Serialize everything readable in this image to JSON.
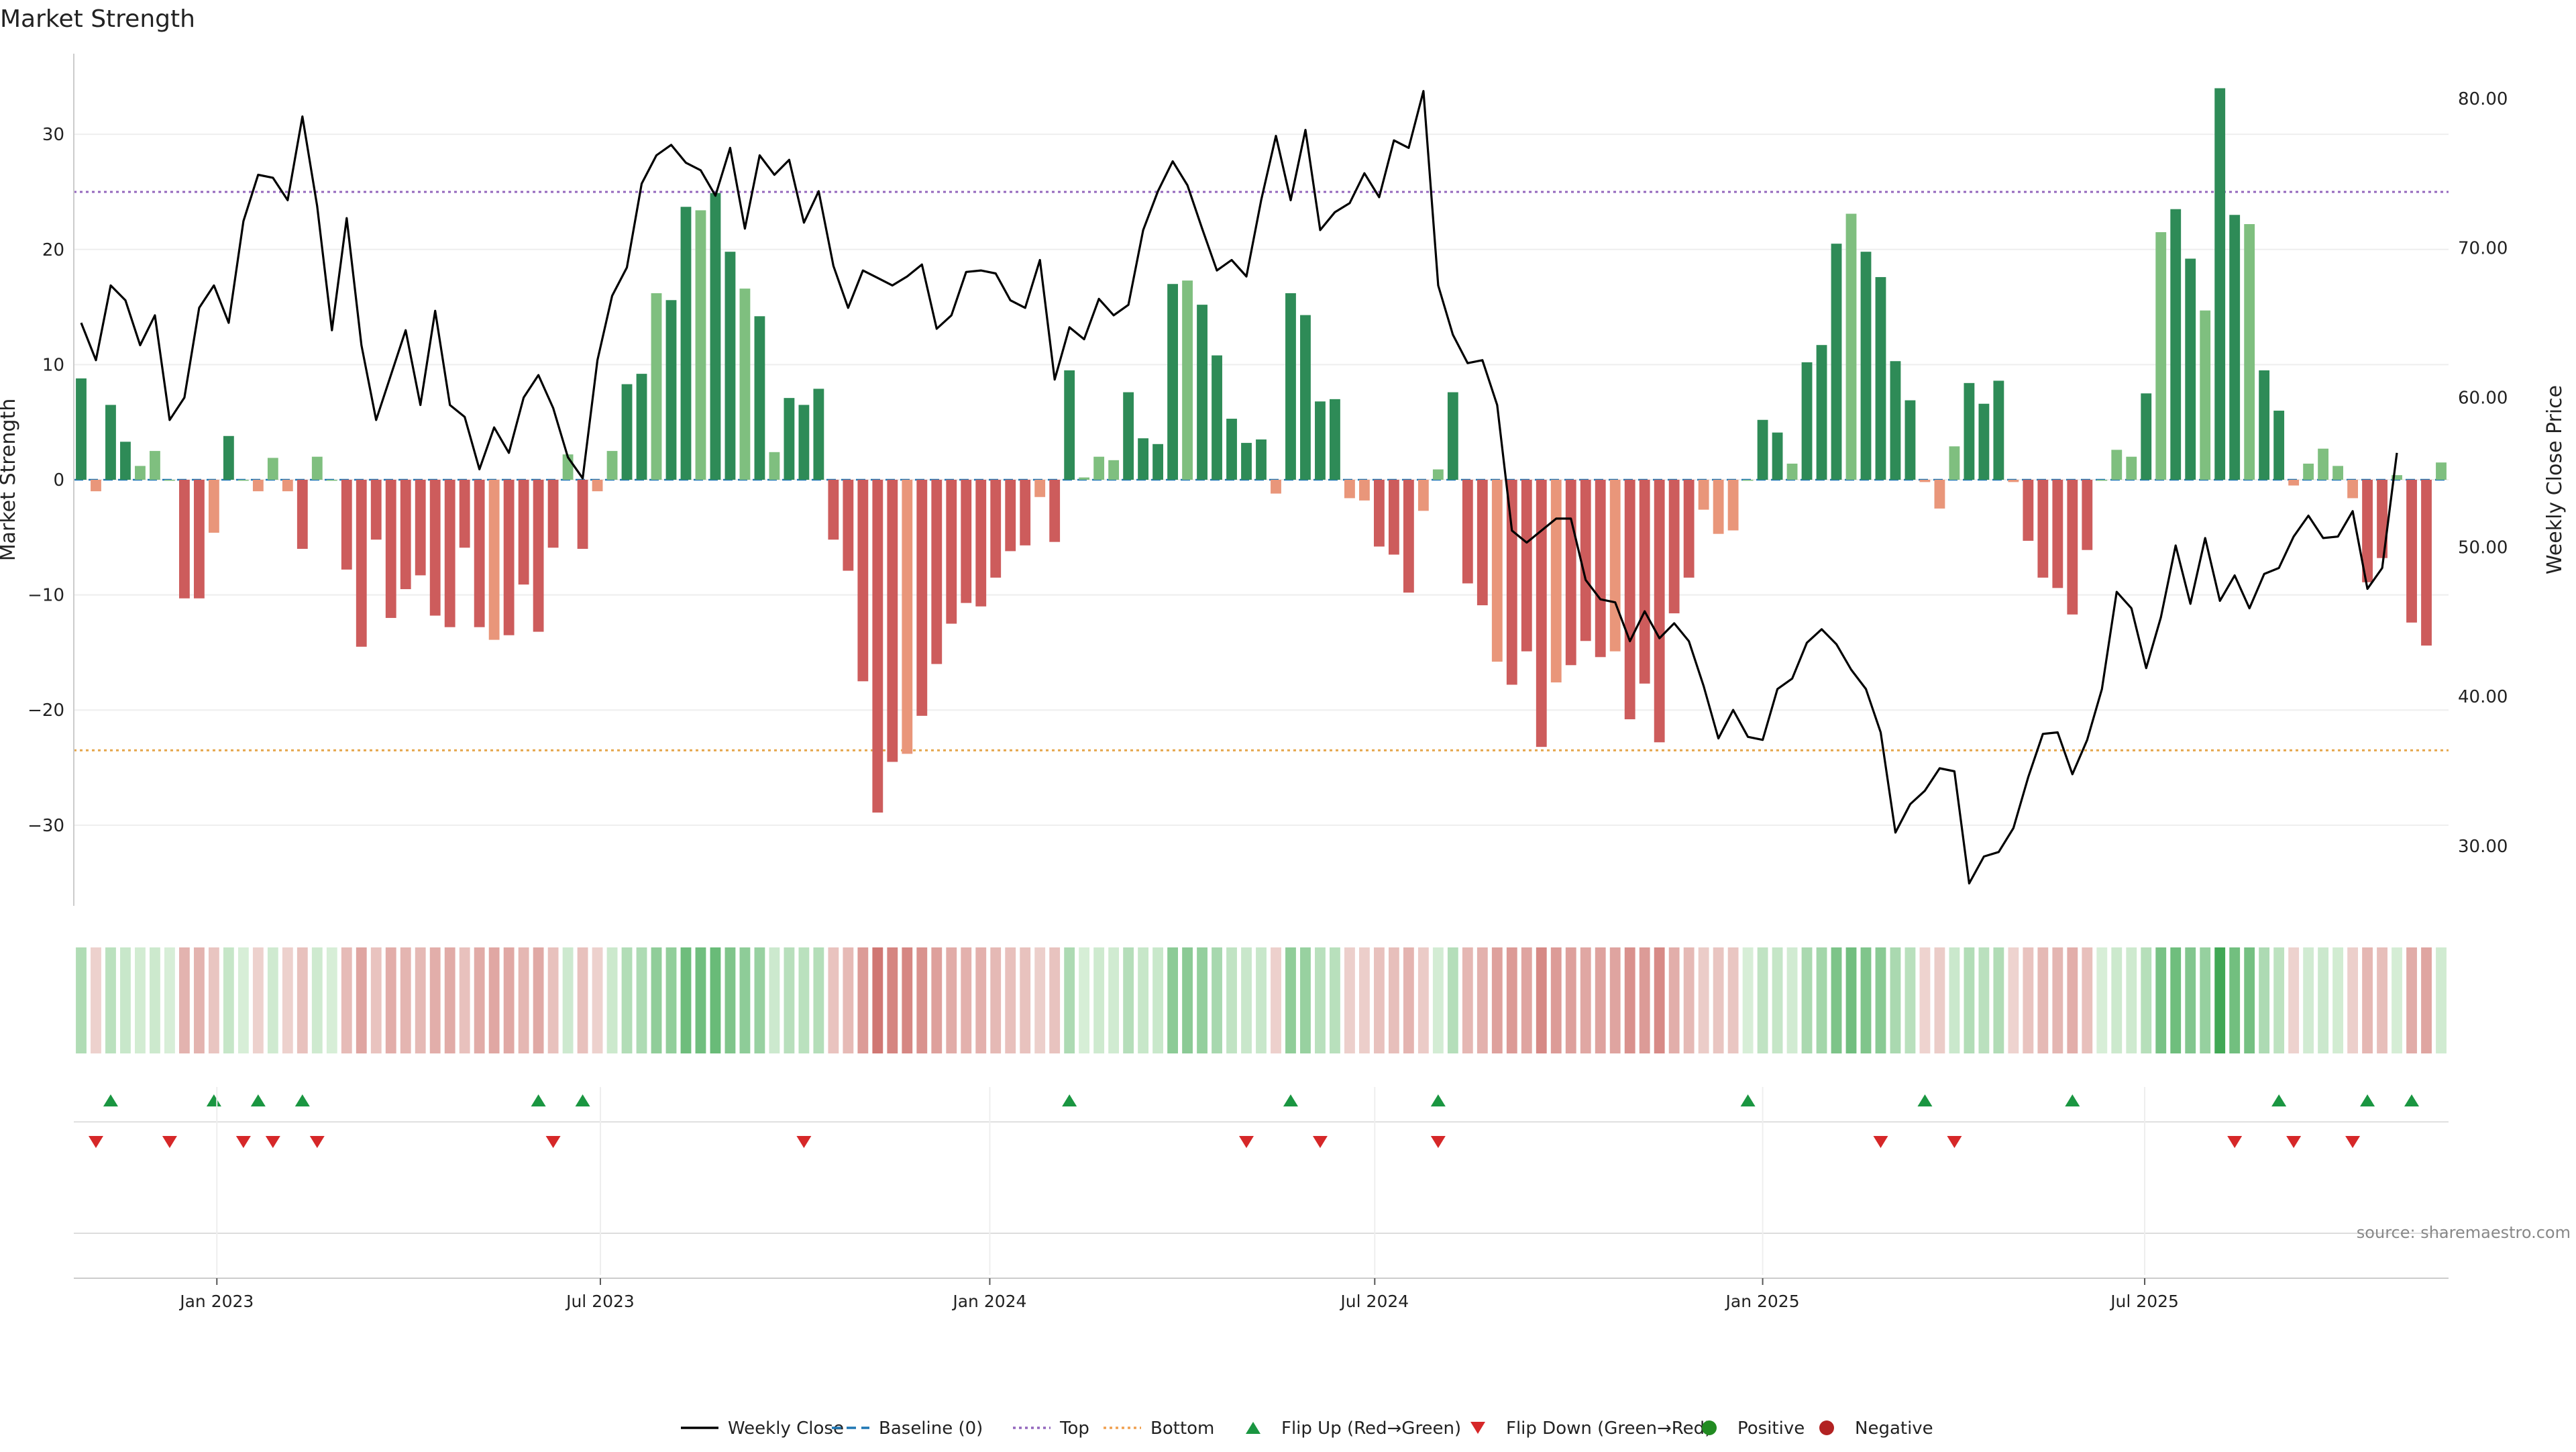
{
  "chart_data": {
    "type": "bar+line",
    "title": "Market Strength",
    "ylabel_left": "Market Strength",
    "ylabel_right": "Weekly Close Price",
    "source_text": "source: sharemaestro.com",
    "ylim_left": [
      -37,
      37
    ],
    "ylim_right": [
      26,
      83
    ],
    "yticks_left": [
      30,
      20,
      10,
      0,
      -10,
      -20,
      -30
    ],
    "yticks_left_labels": [
      "30",
      "20",
      "10",
      "0",
      "−10",
      "−20",
      "−30"
    ],
    "yticks_right": [
      80,
      70,
      60,
      50,
      40,
      30
    ],
    "yticks_right_labels": [
      "80.00",
      "70.00",
      "60.00",
      "50.00",
      "40.00",
      "30.00"
    ],
    "x_tick_labels": [
      "Jan 2023",
      "Jul 2023",
      "Jan 2024",
      "Jul 2024",
      "Jan 2025",
      "Jul 2025"
    ],
    "x_tick_week_index": [
      9.2,
      35.2,
      61.6,
      87.7,
      114.0,
      139.9
    ],
    "top_line": 25,
    "bottom_line": -23.5,
    "strength": [
      8.8,
      -1,
      6.5,
      3.3,
      1.2,
      2.5,
      0,
      -10.3,
      -10.3,
      -4.6,
      3.8,
      0,
      -1,
      1.9,
      -1,
      -6,
      2,
      0,
      -7.8,
      -14.5,
      -5.2,
      -12,
      -9.5,
      -8.3,
      -11.8,
      -12.8,
      -5.9,
      -12.8,
      -13.9,
      -13.5,
      -9.1,
      -13.2,
      -5.9,
      2.2,
      -6,
      -1,
      2.5,
      8.3,
      9.2,
      16.2,
      15.6,
      23.7,
      23.4,
      24.9,
      19.8,
      16.6,
      14.2,
      2.4,
      7.1,
      6.5,
      7.9,
      -5.2,
      -7.9,
      -17.5,
      -28.9,
      -24.5,
      -23.8,
      -20.5,
      -16,
      -12.5,
      -10.7,
      -11,
      -8.5,
      -6.2,
      -5.7,
      -1.5,
      -5.4,
      9.5,
      0.2,
      2,
      1.7,
      7.6,
      3.6,
      3.1,
      17,
      17.3,
      15.2,
      10.8,
      5.3,
      3.2,
      3.5,
      -1.2,
      16.2,
      14.3,
      6.8,
      7,
      -1.6,
      -1.8,
      -5.8,
      -6.5,
      -9.8,
      -2.7,
      0.9,
      7.6,
      -9,
      -10.9,
      -15.8,
      -17.8,
      -14.9,
      -23.2,
      -17.6,
      -16.1,
      -14,
      -15.4,
      -14.9,
      -20.8,
      -17.7,
      -22.8,
      -11.6,
      -8.5,
      -2.6,
      -4.7,
      -4.4,
      0,
      5.2,
      4.1,
      1.4,
      10.2,
      11.7,
      20.5,
      23.1,
      19.8,
      17.6,
      10.3,
      6.9,
      -0.2,
      -2.5,
      2.9,
      8.4,
      6.6,
      8.6,
      -0.2,
      -5.3,
      -8.5,
      -9.4,
      -11.7,
      -6.1,
      0,
      2.6,
      2,
      7.5,
      21.5,
      23.5,
      19.2,
      14.7,
      34,
      23,
      22.2,
      9.5,
      6,
      -0.5,
      1.4,
      2.7,
      1.2,
      -1.6,
      -8.9,
      -6.8,
      0.4,
      -12.4,
      -14.4,
      1.5
    ],
    "weekly_close": [
      65,
      62.5,
      67.5,
      66.5,
      63.5,
      65.5,
      58.5,
      60,
      66,
      67.5,
      65,
      71.8,
      74.9,
      74.7,
      73.2,
      78.8,
      72.8,
      64.5,
      72,
      63.5,
      58.5,
      61.5,
      64.5,
      59.5,
      65.8,
      59.5,
      58.7,
      55.2,
      58,
      56.3,
      60,
      61.5,
      59.3,
      56,
      54.6,
      62.5,
      66.8,
      68.7,
      74.3,
      76.2,
      76.9,
      75.7,
      75.2,
      73.5,
      76.7,
      71.3,
      76.2,
      74.9,
      75.9,
      71.7,
      73.8,
      68.8,
      66,
      68.5,
      68,
      67.5,
      68.1,
      68.9,
      64.6,
      65.5,
      68.4,
      68.5,
      68.3,
      66.5,
      66,
      69.2,
      61.2,
      64.7,
      63.9,
      66.6,
      65.5,
      66.2,
      71.2,
      73.8,
      75.8,
      74.2,
      71.3,
      68.5,
      69.2,
      68.1,
      73.2,
      77.5,
      73.2,
      77.9,
      71.2,
      72.4,
      73,
      75,
      73.4,
      77.2,
      76.7,
      80.5,
      67.5,
      64.2,
      62.3,
      62.5,
      59.5,
      51.1,
      50.3,
      51.1,
      51.9,
      51.9,
      47.8,
      46.5,
      46.3,
      43.7,
      45.7,
      43.9,
      44.9,
      43.7,
      40.7,
      37.2,
      39.1,
      37.3,
      37.1,
      40.5,
      41.2,
      43.6,
      44.5,
      43.5,
      41.8,
      40.5,
      37.6,
      30.9,
      32.8,
      33.7,
      35.2,
      35,
      27.5,
      29.3,
      29.6,
      31.2,
      34.6,
      37.5,
      37.6,
      34.8,
      37.1,
      40.5,
      47,
      45.9,
      41.9,
      45.3,
      50.1,
      46.2,
      50.6,
      46.4,
      48.1,
      45.9,
      48.2,
      48.6,
      50.7,
      52.1,
      50.6,
      50.7,
      52.4,
      47.2,
      48.6,
      56.3
    ],
    "flip_up_weeks": [
      2,
      9,
      12,
      15,
      31,
      34,
      67,
      82,
      92,
      113,
      125,
      135,
      149,
      155,
      158
    ],
    "flip_down_weeks": [
      1,
      6,
      11,
      13,
      16,
      32,
      49,
      79,
      84,
      92,
      122,
      127,
      146,
      150,
      154
    ],
    "legend": [
      {
        "label": "Weekly Close",
        "marker": "solid-line",
        "color": "#000000"
      },
      {
        "label": "Baseline (0)",
        "marker": "dashed-line",
        "color": "#1f77b4"
      },
      {
        "label": "Top",
        "marker": "dotted-line",
        "color": "#9467bd"
      },
      {
        "label": "Bottom",
        "marker": "dotted-line",
        "color": "#f0a050"
      },
      {
        "label": "Flip Up (Red→Green)",
        "marker": "triangle-up",
        "color": "#1a9641"
      },
      {
        "label": "Flip Down (Green→Red)",
        "marker": "triangle-down",
        "color": "#d62728"
      },
      {
        "label": "Positive",
        "marker": "circle",
        "color": "#228b22"
      },
      {
        "label": "Negative",
        "marker": "circle",
        "color": "#b22222"
      }
    ]
  },
  "colors": {
    "strong_green": "#2e8b57",
    "light_green": "#7fbf7f",
    "strong_red": "#cd5c5c",
    "light_red": "#e9967a",
    "grid": "#eeeeee",
    "top_line": "#9467bd",
    "bottom_line": "#e5a64a",
    "baseline": "#1f77b4",
    "flip_up": "#1a9641",
    "flip_down": "#d62728"
  }
}
